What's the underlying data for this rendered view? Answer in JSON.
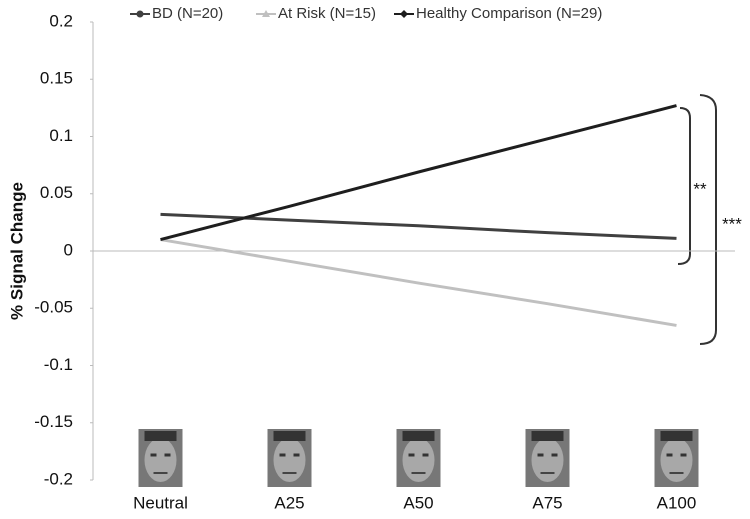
{
  "chart_data": {
    "type": "line",
    "y_label": "% Signal Change",
    "categories": [
      "Neutral",
      "A25",
      "A50",
      "A75",
      "A100"
    ],
    "series": [
      {
        "name": "BD (N=20)",
        "color": "#404040",
        "marker": "circle",
        "values": [
          0.032,
          0.027,
          0.022,
          0.016,
          0.011
        ]
      },
      {
        "name": "At Risk (N=15)",
        "color": "#c0c0c0",
        "marker": "triangle",
        "values": [
          0.01,
          -0.009,
          -0.028,
          -0.046,
          -0.065
        ]
      },
      {
        "name": "Healthy Comparison (N=29)",
        "color": "#1e1e1e",
        "marker": "diamond",
        "values": [
          0.01,
          0.039,
          0.069,
          0.098,
          0.127
        ]
      }
    ],
    "ylim": [
      -0.2,
      0.2
    ],
    "yticks": [
      -0.2,
      -0.15,
      -0.1,
      -0.05,
      0,
      0.05,
      0.1,
      0.15,
      0.2
    ],
    "annotations": [
      "**",
      "***"
    ]
  }
}
